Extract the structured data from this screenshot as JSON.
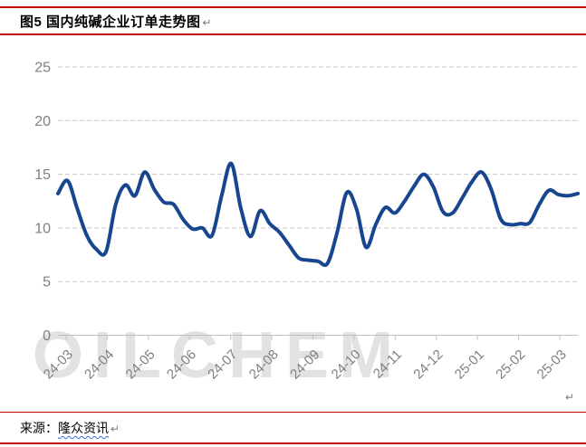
{
  "title": {
    "label": "图5  国内纯碱企业订单走势图",
    "pilcrow": "↵"
  },
  "watermark": "OILCHEM",
  "chart_pilcrow": "↵",
  "source": {
    "prefix": "来源：",
    "name": "隆众资讯",
    "pilcrow": "↵"
  },
  "colors": {
    "accent_red": "#c00000",
    "line_blue": "#17468F",
    "axis_gray": "#bfbfbf",
    "grid_gray": "#c8c8c8",
    "label_gray": "#7f7f7f",
    "watermark_gray": "#e2e2e2"
  },
  "chart_data": {
    "type": "line",
    "title": "国内纯碱企业订单走势图",
    "xlabel": "",
    "ylabel": "",
    "ylim": [
      0,
      25
    ],
    "y_ticks": [
      0,
      5,
      10,
      15,
      20,
      25
    ],
    "grid": "horizontal-dashed",
    "legend_position": "none",
    "x_frequency": "weekly",
    "x_labels": [
      "24-03",
      "24-04",
      "24-05",
      "24-06",
      "24-07",
      "24-08",
      "24-09",
      "24-10",
      "24-11",
      "24-12",
      "25-01",
      "25-02",
      "25-03"
    ],
    "series": [
      {
        "name": "国内纯碱企业订单",
        "color": "#17468F",
        "values": [
          13.2,
          14.4,
          11.8,
          9.3,
          8.0,
          7.8,
          12.2,
          14.0,
          13.0,
          15.2,
          13.6,
          12.4,
          12.2,
          10.8,
          9.9,
          10.0,
          9.3,
          13.0,
          16.0,
          11.8,
          9.2,
          11.6,
          10.4,
          9.6,
          8.4,
          7.2,
          7.0,
          6.9,
          6.7,
          9.6,
          13.3,
          11.8,
          8.2,
          10.3,
          11.9,
          11.4,
          12.5,
          13.9,
          15.0,
          13.8,
          11.5,
          11.4,
          12.8,
          14.3,
          15.2,
          13.6,
          10.8,
          10.3,
          10.4,
          10.5,
          12.2,
          13.5,
          13.1,
          13.0,
          13.2
        ]
      }
    ]
  }
}
